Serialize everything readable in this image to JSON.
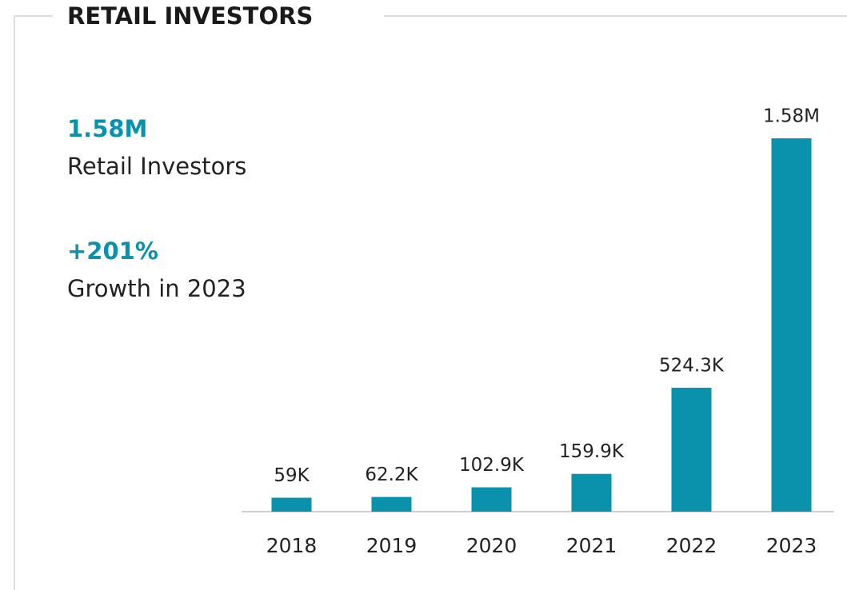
{
  "chart_data": {
    "type": "bar",
    "title": "RETAIL INVESTORS",
    "highlights": [
      {
        "value": "1.58M",
        "label": "Retail Investors"
      },
      {
        "value": "+201%",
        "label": "Growth in 2023"
      }
    ],
    "categories": [
      "2018",
      "2019",
      "2020",
      "2021",
      "2022",
      "2023"
    ],
    "values": [
      59000,
      62200,
      102900,
      159900,
      524300,
      1580000
    ],
    "value_labels": [
      "59K",
      "62.2K",
      "102.9K",
      "159.9K",
      "524.3K",
      "1.58M"
    ],
    "color": "#0a91ab"
  }
}
